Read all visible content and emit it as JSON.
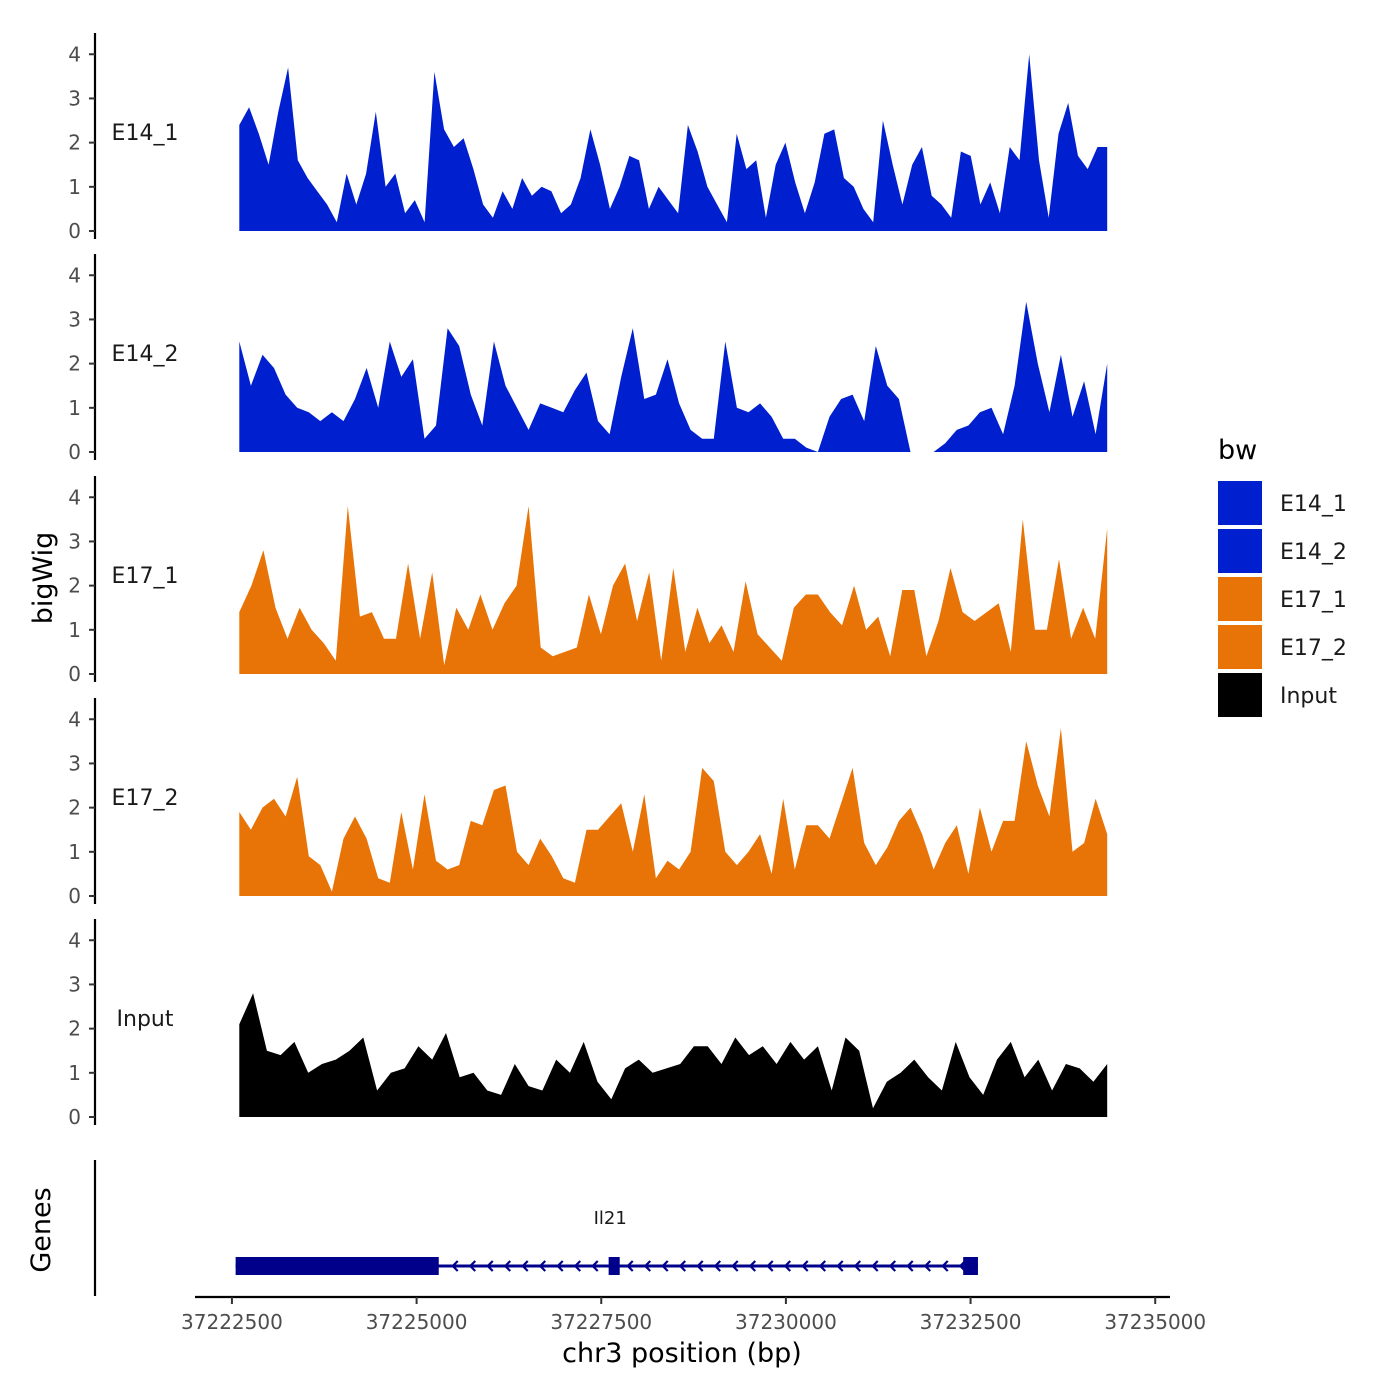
{
  "chart_data": {
    "type": "area",
    "ylabel": "bigWig",
    "xlabel": "chr3 position (bp)",
    "genes_label": "Genes",
    "xlim": [
      37222000,
      37235200
    ],
    "x_ticks": [
      37222500,
      37225000,
      37227500,
      37230000,
      37232500,
      37235000
    ],
    "x_tick_labels": [
      "37222500",
      "37225000",
      "37227500",
      "37230000",
      "37232500",
      "37235000"
    ],
    "ylim": [
      0,
      4.3
    ],
    "y_ticks": [
      0,
      1,
      2,
      3,
      4
    ],
    "y_tick_labels": [
      "0",
      "1",
      "2",
      "3",
      "4"
    ],
    "x_start": 37222600,
    "x_end": 37234350,
    "tracks": [
      {
        "name": "E14_1",
        "color": "#0020D0",
        "values": [
          2.4,
          2.8,
          2.2,
          1.5,
          2.7,
          3.7,
          1.6,
          1.2,
          0.9,
          0.6,
          0.2,
          1.3,
          0.6,
          1.3,
          2.7,
          1.0,
          1.3,
          0.4,
          0.7,
          0.2,
          3.6,
          2.3,
          1.9,
          2.1,
          1.4,
          0.6,
          0.3,
          0.9,
          0.5,
          1.2,
          0.8,
          1.0,
          0.9,
          0.4,
          0.6,
          1.2,
          2.3,
          1.5,
          0.5,
          1.0,
          1.7,
          1.6,
          0.5,
          1.0,
          0.7,
          0.4,
          2.4,
          1.8,
          1.0,
          0.6,
          0.2,
          2.2,
          1.4,
          1.6,
          0.3,
          1.5,
          2.0,
          1.1,
          0.4,
          1.1,
          2.2,
          2.3,
          1.2,
          1.0,
          0.5,
          0.2,
          2.5,
          1.5,
          0.6,
          1.5,
          1.9,
          0.8,
          0.6,
          0.3,
          1.8,
          1.7,
          0.6,
          1.1,
          0.4,
          1.9,
          1.6,
          4.0,
          1.6,
          0.3,
          2.2,
          2.9,
          1.7,
          1.4,
          1.9,
          1.9
        ]
      },
      {
        "name": "E14_2",
        "color": "#0020D0",
        "values": [
          2.5,
          1.5,
          2.2,
          1.9,
          1.3,
          1.0,
          0.9,
          0.7,
          0.9,
          0.7,
          1.2,
          1.9,
          1.0,
          2.5,
          1.7,
          2.1,
          0.3,
          0.6,
          2.8,
          2.4,
          1.3,
          0.6,
          2.5,
          1.5,
          1.0,
          0.5,
          1.1,
          1.0,
          0.9,
          1.4,
          1.8,
          0.7,
          0.4,
          1.7,
          2.8,
          1.2,
          1.3,
          2.1,
          1.1,
          0.5,
          0.3,
          0.3,
          2.5,
          1.0,
          0.9,
          1.1,
          0.8,
          0.3,
          0.3,
          0.1,
          0.0,
          0.8,
          1.2,
          1.3,
          0.7,
          2.4,
          1.5,
          1.2,
          0.0,
          0.0,
          0.0,
          0.2,
          0.5,
          0.6,
          0.9,
          1.0,
          0.4,
          1.5,
          3.4,
          2.0,
          0.9,
          2.2,
          0.8,
          1.6,
          0.4,
          2.0
        ]
      },
      {
        "name": "E17_1",
        "color": "#E87306",
        "values": [
          1.4,
          2.0,
          2.8,
          1.5,
          0.8,
          1.5,
          1.0,
          0.7,
          0.3,
          3.8,
          1.3,
          1.4,
          0.8,
          0.8,
          2.5,
          0.8,
          2.3,
          0.2,
          1.5,
          1.0,
          1.8,
          1.0,
          1.6,
          2.0,
          3.8,
          0.6,
          0.4,
          0.5,
          0.6,
          1.8,
          0.9,
          2.0,
          2.5,
          1.2,
          2.3,
          0.3,
          2.4,
          0.5,
          1.5,
          0.7,
          1.1,
          0.5,
          2.1,
          0.9,
          0.6,
          0.3,
          1.5,
          1.8,
          1.8,
          1.4,
          1.1,
          2.0,
          1.0,
          1.3,
          0.4,
          1.9,
          1.9,
          0.4,
          1.2,
          2.4,
          1.4,
          1.2,
          1.4,
          1.6,
          0.5,
          3.5,
          1.0,
          1.0,
          2.6,
          0.8,
          1.5,
          0.8,
          3.3
        ]
      },
      {
        "name": "E17_2",
        "color": "#E87306",
        "values": [
          1.9,
          1.5,
          2.0,
          2.2,
          1.8,
          2.7,
          0.9,
          0.7,
          0.1,
          1.3,
          1.8,
          1.3,
          0.4,
          0.3,
          1.9,
          0.6,
          2.3,
          0.8,
          0.6,
          0.7,
          1.7,
          1.6,
          2.4,
          2.5,
          1.0,
          0.7,
          1.3,
          0.9,
          0.4,
          0.3,
          1.5,
          1.5,
          1.8,
          2.1,
          1.0,
          2.3,
          0.4,
          0.8,
          0.6,
          1.0,
          2.9,
          2.6,
          1.0,
          0.7,
          1.0,
          1.4,
          0.5,
          2.2,
          0.6,
          1.6,
          1.6,
          1.3,
          2.1,
          2.9,
          1.2,
          0.7,
          1.1,
          1.7,
          2.0,
          1.4,
          0.6,
          1.2,
          1.6,
          0.5,
          2.0,
          1.0,
          1.7,
          1.7,
          3.5,
          2.5,
          1.8,
          3.8,
          1.0,
          1.2,
          2.2,
          1.4
        ]
      },
      {
        "name": "Input",
        "color": "#000000",
        "values": [
          2.1,
          2.8,
          1.5,
          1.4,
          1.7,
          1.0,
          1.2,
          1.3,
          1.5,
          1.8,
          0.6,
          1.0,
          1.1,
          1.6,
          1.3,
          1.9,
          0.9,
          1.0,
          0.6,
          0.5,
          1.2,
          0.7,
          0.6,
          1.3,
          1.0,
          1.7,
          0.8,
          0.4,
          1.1,
          1.3,
          1.0,
          1.1,
          1.2,
          1.6,
          1.6,
          1.2,
          1.8,
          1.4,
          1.6,
          1.2,
          1.7,
          1.3,
          1.6,
          0.6,
          1.8,
          1.5,
          0.2,
          0.8,
          1.0,
          1.3,
          0.9,
          0.6,
          1.7,
          0.9,
          0.5,
          1.3,
          1.7,
          0.9,
          1.3,
          0.6,
          1.2,
          1.1,
          0.8,
          1.2
        ]
      }
    ],
    "legend": {
      "title": "bw",
      "items": [
        {
          "label": "E14_1",
          "color": "#0020D0"
        },
        {
          "label": "E14_2",
          "color": "#0020D0"
        },
        {
          "label": "E17_1",
          "color": "#E87306"
        },
        {
          "label": "E17_2",
          "color": "#E87306"
        },
        {
          "label": "Input",
          "color": "#000000"
        }
      ]
    },
    "gene": {
      "name": "Il21",
      "color": "#00008B",
      "strand": "-",
      "start": 37222550,
      "end": 37232600,
      "exons": [
        [
          37222550,
          37225300
        ],
        [
          37227600,
          37227750
        ],
        [
          37232400,
          37232600
        ]
      ]
    }
  }
}
